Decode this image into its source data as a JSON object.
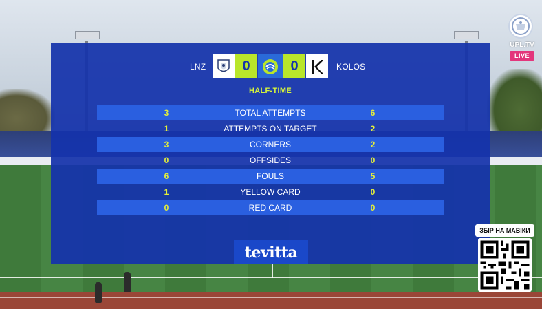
{
  "scoreboard": {
    "home_team": "LNZ",
    "away_team": "KOLOS",
    "home_score": "0",
    "away_score": "0",
    "period": "HALF-TIME",
    "home_crest_icon": "lnz-crest-icon",
    "away_crest_icon": "kolos-crest-icon",
    "league_icon": "upl-league-icon"
  },
  "stats": [
    {
      "label": "TOTAL ATTEMPTS",
      "home": "3",
      "away": "6"
    },
    {
      "label": "ATTEMPTS ON TARGET",
      "home": "1",
      "away": "2"
    },
    {
      "label": "CORNERS",
      "home": "3",
      "away": "2"
    },
    {
      "label": "OFFSIDES",
      "home": "0",
      "away": "0"
    },
    {
      "label": "FOULS",
      "home": "6",
      "away": "5"
    },
    {
      "label": "YELLOW CARD",
      "home": "1",
      "away": "0"
    },
    {
      "label": "RED CARD",
      "home": "0",
      "away": "0"
    }
  ],
  "sponsor": {
    "name": "tevitta"
  },
  "broadcast": {
    "channel": "UPL.TV",
    "live_label": "LIVE"
  },
  "donation": {
    "title": "ЗБІР НА МАВІКИ"
  },
  "colors": {
    "panel_blue": "#1433ab",
    "row_blue": "#2a5fe0",
    "score_green": "#b9e62a",
    "value_yellow": "#e3ee3a",
    "live_pink": "#e3367c"
  }
}
